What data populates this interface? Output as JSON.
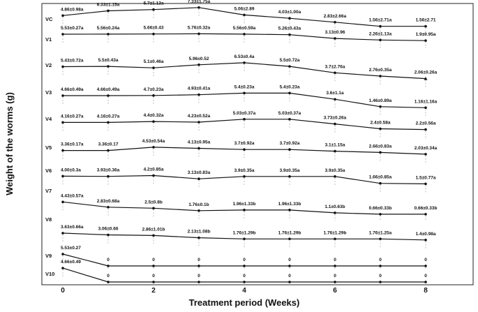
{
  "chart_data": {
    "type": "line",
    "xlabel": "Treatment period (Weeks)",
    "ylabel": "Weight of the worms (g)",
    "x": [
      0,
      1,
      2,
      3,
      4,
      5,
      6,
      7,
      8
    ],
    "x_ticks": [
      "0",
      "2",
      "4",
      "6",
      "8"
    ],
    "series": [
      {
        "name": "VC",
        "values": [
          4.86,
          6.33,
          6.7,
          7.33,
          5.06,
          4.03,
          2.83,
          1.56,
          1.56
        ],
        "labels": [
          "4.86±0.98a",
          "6.33±1.15a",
          "6.7±1.12a",
          "7.33±1.75a",
          "5.06±2.89",
          "4.03±1.00a",
          "2.83±2.66a",
          "1.56±2.71a",
          "1.56±2.71"
        ]
      },
      {
        "name": "V1",
        "values": [
          5.53,
          5.56,
          5.66,
          5.76,
          5.56,
          5.26,
          3.13,
          2.26,
          1.9
        ],
        "labels": [
          "5.53±0.27a",
          "5.56±0.24a",
          "5.66±0.43",
          "5.76±0.32a",
          "5.56±0.59a",
          "5.26±0.43a",
          "3.13±0.96",
          "2.26±1.13a",
          "1.9±0.95a"
        ]
      },
      {
        "name": "V2",
        "values": [
          5.43,
          5.5,
          5.1,
          5.96,
          6.53,
          5.5,
          3.7,
          2.76,
          2.06
        ],
        "labels": [
          "5.43±0.72a",
          "5.5±0.43a",
          "5.1±0.46a",
          "5.96±0.52",
          "6.53±0.4a",
          "5.5±0.72a",
          "3.7±2.76a",
          "2.76±0.35a",
          "2.06±0.26a"
        ]
      },
      {
        "name": "V3",
        "values": [
          4.66,
          4.66,
          4.7,
          4.93,
          5.4,
          5.4,
          3.6,
          1.46,
          1.16
        ],
        "labels": [
          "4.66±0.49a",
          "4.66±0.49a",
          "4.7±0.23a",
          "4.93±0.41a",
          "5.4±0.23a",
          "5.4±0.23a",
          "3.6±1.1a",
          "1.46±0.89a",
          "1.16±1.16a"
        ]
      },
      {
        "name": "V4",
        "values": [
          4.16,
          4.16,
          4.4,
          4.23,
          5.03,
          5.03,
          3.73,
          2.4,
          2.2
        ],
        "labels": [
          "4.16±0.27a",
          "4.16±0.27a",
          "4.4±0.32a",
          "4.23±0.52a",
          "5.03±0.37a",
          "5.03±0.37a",
          "3.73±0.26a",
          "2.4±0.58a",
          "2.2±0.56a"
        ]
      },
      {
        "name": "V5",
        "values": [
          3.36,
          3.36,
          4.53,
          4.13,
          3.7,
          3.7,
          3.1,
          2.66,
          2.03
        ],
        "labels": [
          "3.36±0.17a",
          "3.36±0.17",
          "4.53±0.54a",
          "4.13±0.95a",
          "3.7±0.92a",
          "3.7±0.92a",
          "3.1±1.15a",
          "2.66±0.83a",
          "2.03±0.34a"
        ]
      },
      {
        "name": "V6",
        "values": [
          4.0,
          3.93,
          4.2,
          3.13,
          3.9,
          3.9,
          3.9,
          1.66,
          1.5
        ],
        "labels": [
          "4.00±0.3a",
          "3.93±0.36a",
          "4.2±0.85a",
          "3.13±0.83a",
          "3.9±0.35a",
          "3.9±0.35a",
          "3.9±0.35a",
          "1.66±0.85a",
          "1.5±0.77a"
        ]
      },
      {
        "name": "V7",
        "values": [
          4.43,
          2.83,
          2.5,
          1.76,
          1.96,
          1.96,
          1.1,
          0.66,
          0.66
        ],
        "labels": [
          "4.43±0.57a",
          "2.83±0.68a",
          "2.5±0.8b",
          "1.76±0.1b",
          "1.96±1.33b",
          "1.96±1.33b",
          "1.1±0.63b",
          "0.66±0.33b",
          "0.66±0.33b"
        ]
      },
      {
        "name": "V8",
        "values": [
          3.63,
          3.06,
          2.86,
          2.13,
          1.76,
          1.76,
          1.76,
          1.76,
          1.4
        ],
        "labels": [
          "3.63±0.66a",
          "3.06±0.66",
          "2.86±1.01b",
          "2.13±1.08b",
          "1.76±1.29b",
          "1.76±1.29b",
          "1.76±1.29b",
          "1.76±1.25a",
          "1.4±0.98a"
        ]
      },
      {
        "name": "V9",
        "values": [
          5.53,
          0,
          0,
          0,
          0,
          0,
          0,
          0,
          0
        ],
        "labels": [
          "5.53±0.27",
          "0",
          "0",
          "0",
          "0",
          "0",
          "0",
          "0",
          "0"
        ]
      },
      {
        "name": "V10",
        "values": [
          4.66,
          0,
          0,
          0,
          0,
          0,
          0,
          0,
          0
        ],
        "labels": [
          "4.66±0.49",
          "0",
          "0",
          "0",
          "0",
          "0",
          "0",
          "0",
          "0"
        ]
      }
    ]
  }
}
